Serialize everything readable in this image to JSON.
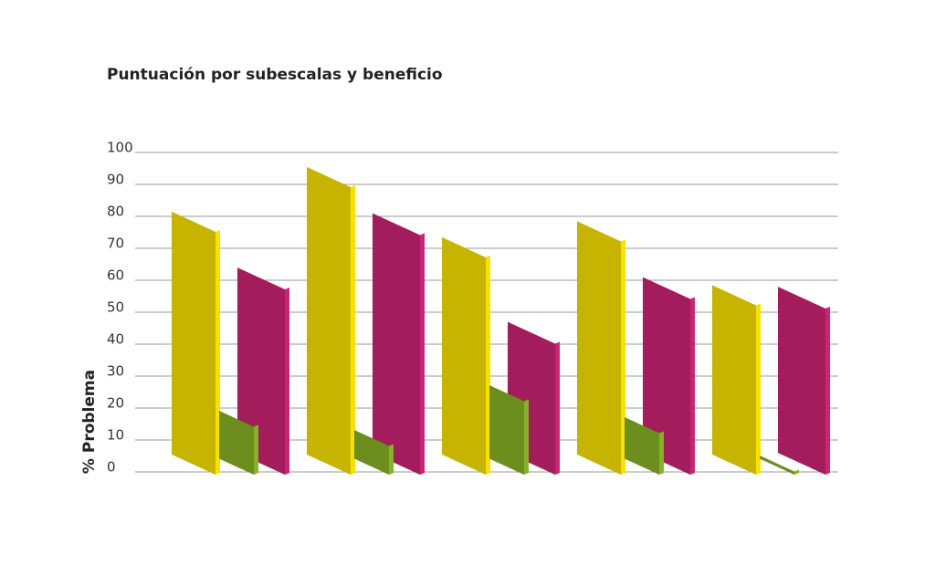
{
  "chart_data": {
    "type": "bar3d",
    "title": "Puntuación por subescalas y beneficio",
    "y_label": "% Problema",
    "categories": [
      null,
      null,
      null,
      null,
      null
    ],
    "series": [
      {
        "color": "#c6b400",
        "values": [
          76,
          90,
          68,
          73,
          53
        ]
      },
      {
        "color": "#6b8e1e",
        "values": [
          15,
          9,
          23,
          13,
          1
        ]
      },
      {
        "color": "#a31c5b",
        "values": [
          58,
          75,
          41,
          55,
          52
        ]
      }
    ],
    "ylim": [
      0,
      100
    ],
    "yticks": [
      0,
      10,
      20,
      30,
      40,
      50,
      60,
      70,
      80,
      90,
      100
    ],
    "grid": true
  }
}
